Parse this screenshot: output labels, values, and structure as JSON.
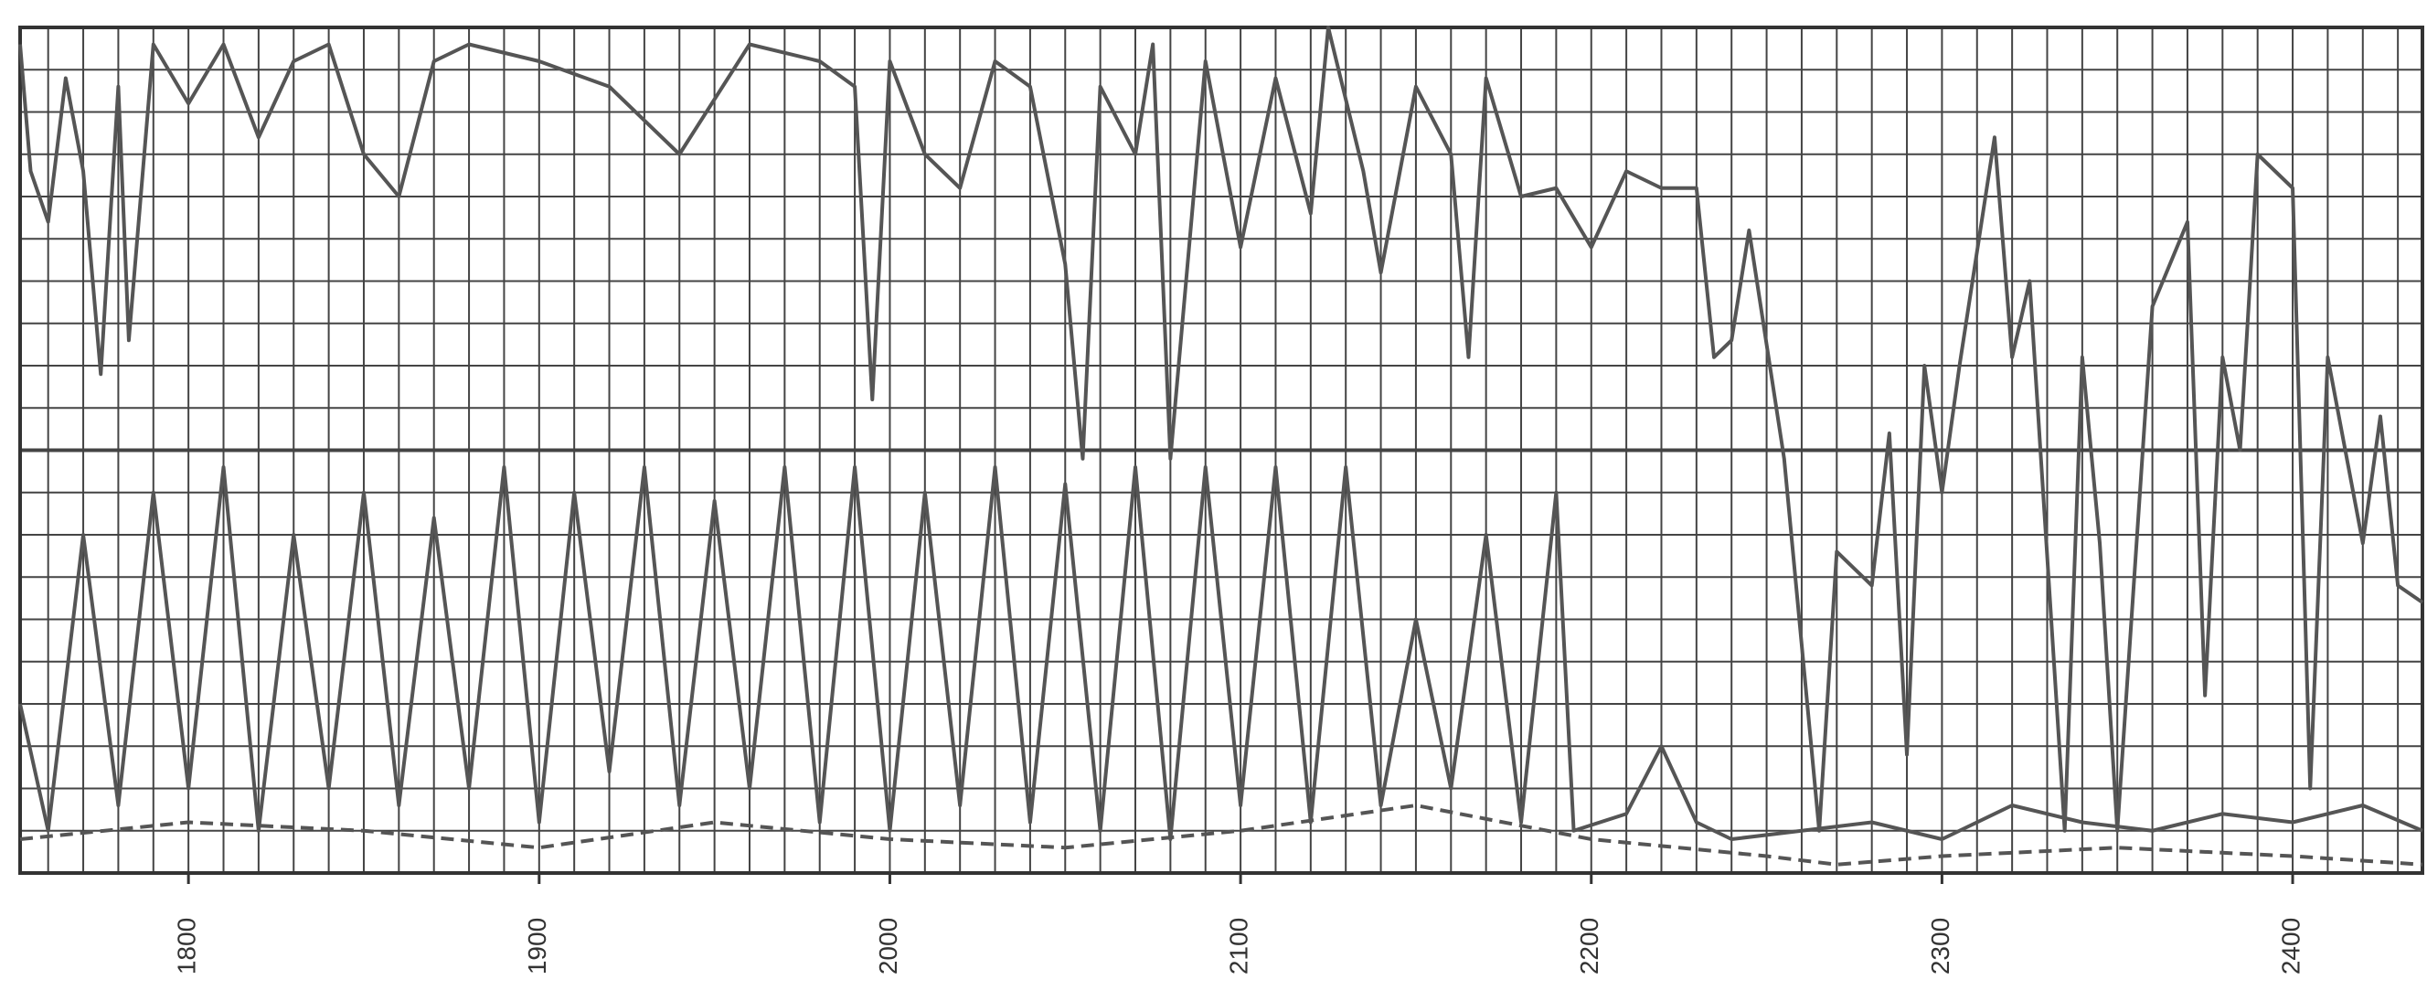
{
  "chart_data": {
    "type": "line",
    "xlim": [
      1752,
      2437
    ],
    "xticks": [
      1800,
      1900,
      2000,
      2100,
      2200,
      2300,
      2400
    ],
    "ylim": [
      0,
      100
    ],
    "grid": true,
    "series": [
      {
        "color": "#555555",
        "dashed": false,
        "x": [
          1752,
          1755,
          1760,
          1765,
          1770,
          1775,
          1780,
          1783,
          1790,
          1800,
          1810,
          1820,
          1830,
          1840,
          1850,
          1860,
          1870,
          1880,
          1900,
          1920,
          1940,
          1960,
          1980,
          1990,
          1995,
          2000,
          2010,
          2020,
          2030,
          2040,
          2050,
          2055,
          2060,
          2070,
          2075,
          2080,
          2090,
          2100,
          2110,
          2120,
          2125,
          2135,
          2140,
          2150,
          2160,
          2165,
          2170,
          2180,
          2190,
          2200,
          2210,
          2220,
          2230,
          2235,
          2240,
          2245,
          2255,
          2265,
          2270,
          2280,
          2285,
          2290,
          2295,
          2300,
          2305,
          2315,
          2320,
          2325,
          2335,
          2340,
          2345,
          2350,
          2360,
          2370,
          2375,
          2380,
          2385,
          2390,
          2400,
          2405,
          2410,
          2420,
          2425,
          2430,
          2437
        ],
        "values": [
          98,
          83,
          77,
          94,
          83,
          59,
          93,
          63,
          98,
          91,
          98,
          87,
          96,
          98,
          85,
          80,
          96,
          98,
          96,
          93,
          85,
          98,
          96,
          93,
          56,
          96,
          85,
          81,
          96,
          93,
          72,
          49,
          93,
          85,
          98,
          49,
          96,
          74,
          94,
          78,
          100,
          83,
          71,
          93,
          85,
          61,
          94,
          80,
          81,
          74,
          83,
          81,
          81,
          61,
          63,
          76,
          49,
          5,
          38,
          34,
          52,
          14,
          60,
          45,
          60,
          87,
          61,
          70,
          5,
          61,
          39,
          5,
          67,
          77,
          21,
          61,
          50,
          85,
          81,
          10,
          61,
          39,
          54,
          34,
          32
        ]
      },
      {
        "color": "#555555",
        "dashed": false,
        "x": [
          1752,
          1760,
          1770,
          1780,
          1790,
          1800,
          1810,
          1820,
          1830,
          1840,
          1850,
          1860,
          1870,
          1880,
          1890,
          1900,
          1910,
          1920,
          1930,
          1940,
          1950,
          1960,
          1970,
          1980,
          1990,
          2000,
          2010,
          2020,
          2030,
          2040,
          2050,
          2060,
          2070,
          2080,
          2090,
          2100,
          2110,
          2120,
          2130,
          2140,
          2150,
          2160,
          2170,
          2180,
          2190,
          2195,
          2210,
          2220,
          2230,
          2240,
          2260,
          2280,
          2300,
          2320,
          2340,
          2360,
          2380,
          2400,
          2420,
          2437
        ],
        "values": [
          20,
          5,
          40,
          8,
          45,
          10,
          48,
          5,
          40,
          10,
          45,
          8,
          42,
          10,
          48,
          6,
          45,
          12,
          48,
          8,
          44,
          10,
          48,
          6,
          48,
          5,
          45,
          8,
          48,
          6,
          46,
          5,
          48,
          4,
          48,
          8,
          48,
          6,
          48,
          8,
          30,
          10,
          40,
          6,
          45,
          5,
          7,
          15,
          6,
          4,
          5,
          6,
          4,
          8,
          6,
          5,
          7,
          6,
          8,
          5
        ]
      },
      {
        "color": "#555555",
        "dashed": true,
        "x": [
          1752,
          1800,
          1850,
          1900,
          1950,
          2000,
          2050,
          2100,
          2150,
          2200,
          2250,
          2270,
          2300,
          2350,
          2400,
          2437
        ],
        "values": [
          4,
          6,
          5,
          3,
          6,
          4,
          3,
          5,
          8,
          4,
          2,
          1,
          2,
          3,
          2,
          1
        ]
      }
    ]
  }
}
